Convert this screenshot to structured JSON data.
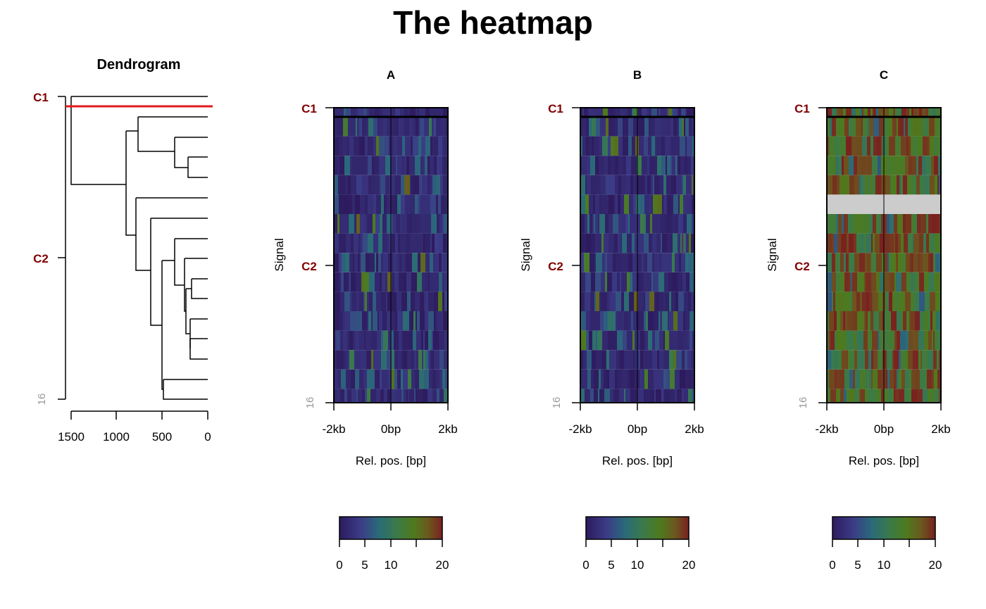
{
  "figure": {
    "title": "The heatmap"
  },
  "dendrogram": {
    "title": "Dendrogram",
    "cluster_labels": [
      "C1",
      "C2"
    ],
    "row_count_label": "16",
    "axis_ticks": [
      "1500",
      "1000",
      "500",
      "0"
    ]
  },
  "panels": [
    {
      "title": "A",
      "ylabel": "Signal",
      "xlabel": "Rel. pos. [bp]",
      "cluster_labels": [
        "C1",
        "C2"
      ],
      "row_count_label": "16",
      "x_ticks": [
        "-2kb",
        "0bp",
        "2kb"
      ],
      "colorbar_ticks": [
        "0",
        "5",
        "10",
        "20"
      ]
    },
    {
      "title": "B",
      "ylabel": "Signal",
      "xlabel": "Rel. pos. [bp]",
      "cluster_labels": [
        "C1",
        "C2"
      ],
      "row_count_label": "16",
      "x_ticks": [
        "-2kb",
        "0bp",
        "2kb"
      ],
      "colorbar_ticks": [
        "0",
        "5",
        "10",
        "20"
      ]
    },
    {
      "title": "C",
      "ylabel": "Signal",
      "xlabel": "Rel. pos. [bp]",
      "cluster_labels": [
        "C1",
        "C2"
      ],
      "row_count_label": "16",
      "x_ticks": [
        "-2kb",
        "0bp",
        "2kb"
      ],
      "colorbar_ticks": [
        "0",
        "5",
        "10",
        "20"
      ]
    }
  ],
  "colors": {
    "cluster_label": "#800000",
    "count_label": "#999999",
    "cut_line": "#e31a1c",
    "missing_row": "#cccccc",
    "colormap": [
      "#2d1b5e",
      "#3b3b86",
      "#2a6a7a",
      "#3a7a4a",
      "#4e7a1e",
      "#6a5a1e",
      "#7a2020"
    ]
  },
  "chart_data": [
    {
      "type": "dendrogram",
      "title": "Dendrogram",
      "xlim": [
        1550,
        0
      ],
      "x_ticks": [
        1500,
        1000,
        500,
        0
      ],
      "leaves": 16,
      "clusters": [
        {
          "name": "C1",
          "rows": [
            1,
            1
          ]
        },
        {
          "name": "C2",
          "rows": [
            2,
            16
          ]
        }
      ],
      "cut_height": 1520,
      "merge_heights": [
        1510,
        880,
        780,
        750,
        620,
        510,
        480,
        390,
        360,
        350,
        270,
        240,
        240,
        200,
        190
      ]
    },
    {
      "type": "heatmap",
      "title": "A",
      "xlabel": "Rel. pos. [bp]",
      "ylabel": "Signal",
      "x_ticks": [
        "-2kb",
        "0bp",
        "2kb"
      ],
      "rows": 16,
      "row_groups": [
        {
          "name": "C1",
          "rows": 1
        },
        {
          "name": "C2",
          "rows": 15
        }
      ],
      "color_range": [
        0,
        20
      ],
      "colorbar_ticks": [
        0,
        5,
        10,
        20
      ],
      "mean_level": 2.5
    },
    {
      "type": "heatmap",
      "title": "B",
      "xlabel": "Rel. pos. [bp]",
      "ylabel": "Signal",
      "x_ticks": [
        "-2kb",
        "0bp",
        "2kb"
      ],
      "rows": 16,
      "row_groups": [
        {
          "name": "C1",
          "rows": 1
        },
        {
          "name": "C2",
          "rows": 15
        }
      ],
      "color_range": [
        0,
        20
      ],
      "colorbar_ticks": [
        0,
        5,
        10,
        20
      ],
      "mean_level": 2.5
    },
    {
      "type": "heatmap",
      "title": "C",
      "xlabel": "Rel. pos. [bp]",
      "ylabel": "Signal",
      "x_ticks": [
        "-2kb",
        "0bp",
        "2kb"
      ],
      "rows": 16,
      "row_groups": [
        {
          "name": "C1",
          "rows": 1
        },
        {
          "name": "C2",
          "rows": 15
        }
      ],
      "missing_rows": [
        6
      ],
      "color_range": [
        0,
        20
      ],
      "colorbar_ticks": [
        0,
        5,
        10,
        20
      ],
      "mean_level": 13
    }
  ]
}
